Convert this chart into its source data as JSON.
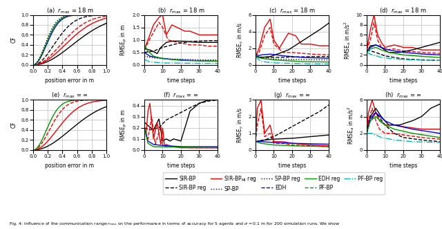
{
  "fig_width": 6.4,
  "fig_height": 3.31,
  "dpi": 100,
  "background": "#ffffff",
  "grid_color": "#bbbbbb",
  "subtitles": [
    "(a)  $r_{\\mathrm{max}}$ = 18 m",
    "(b)  $r_{\\mathrm{max}}$ = 18 m",
    "(c)  $r_{\\mathrm{max}}$ = 18 m",
    "(d)  $r_{\\mathrm{max}}$ = 18 m",
    "(e)  $r_{\\mathrm{max}}$ = $\\infty$",
    "(f)  $r_{\\mathrm{max}}$ = $\\infty$",
    "(g)  $r_{\\mathrm{max}}$ = $\\infty$",
    "(h)  $r_{\\mathrm{max}}$ = $\\infty$"
  ],
  "C_black": "#000000",
  "C_red": "#ee0000",
  "C_blue": "#0000ee",
  "C_green": "#009900",
  "C_cyan": "#00bbbb",
  "C_dotblack": "#000000",
  "legend_row1": [
    "SIR-BP",
    "SIR-BP reg",
    "SIR-BP$_{\\mathrm{MI}}$ reg",
    "SP-BP",
    "SP-BP reg"
  ],
  "legend_row2": [
    "EDH",
    "EDH reg",
    "PF-BP",
    "PF-BP reg"
  ],
  "caption": "Fig. 4: Influence of the communication range $r_{\\mathrm{max}}$ on the performance in terms of accuracy for 5 agents and $\\sigma = 0.1$ m for 200 simulation runs. We show"
}
